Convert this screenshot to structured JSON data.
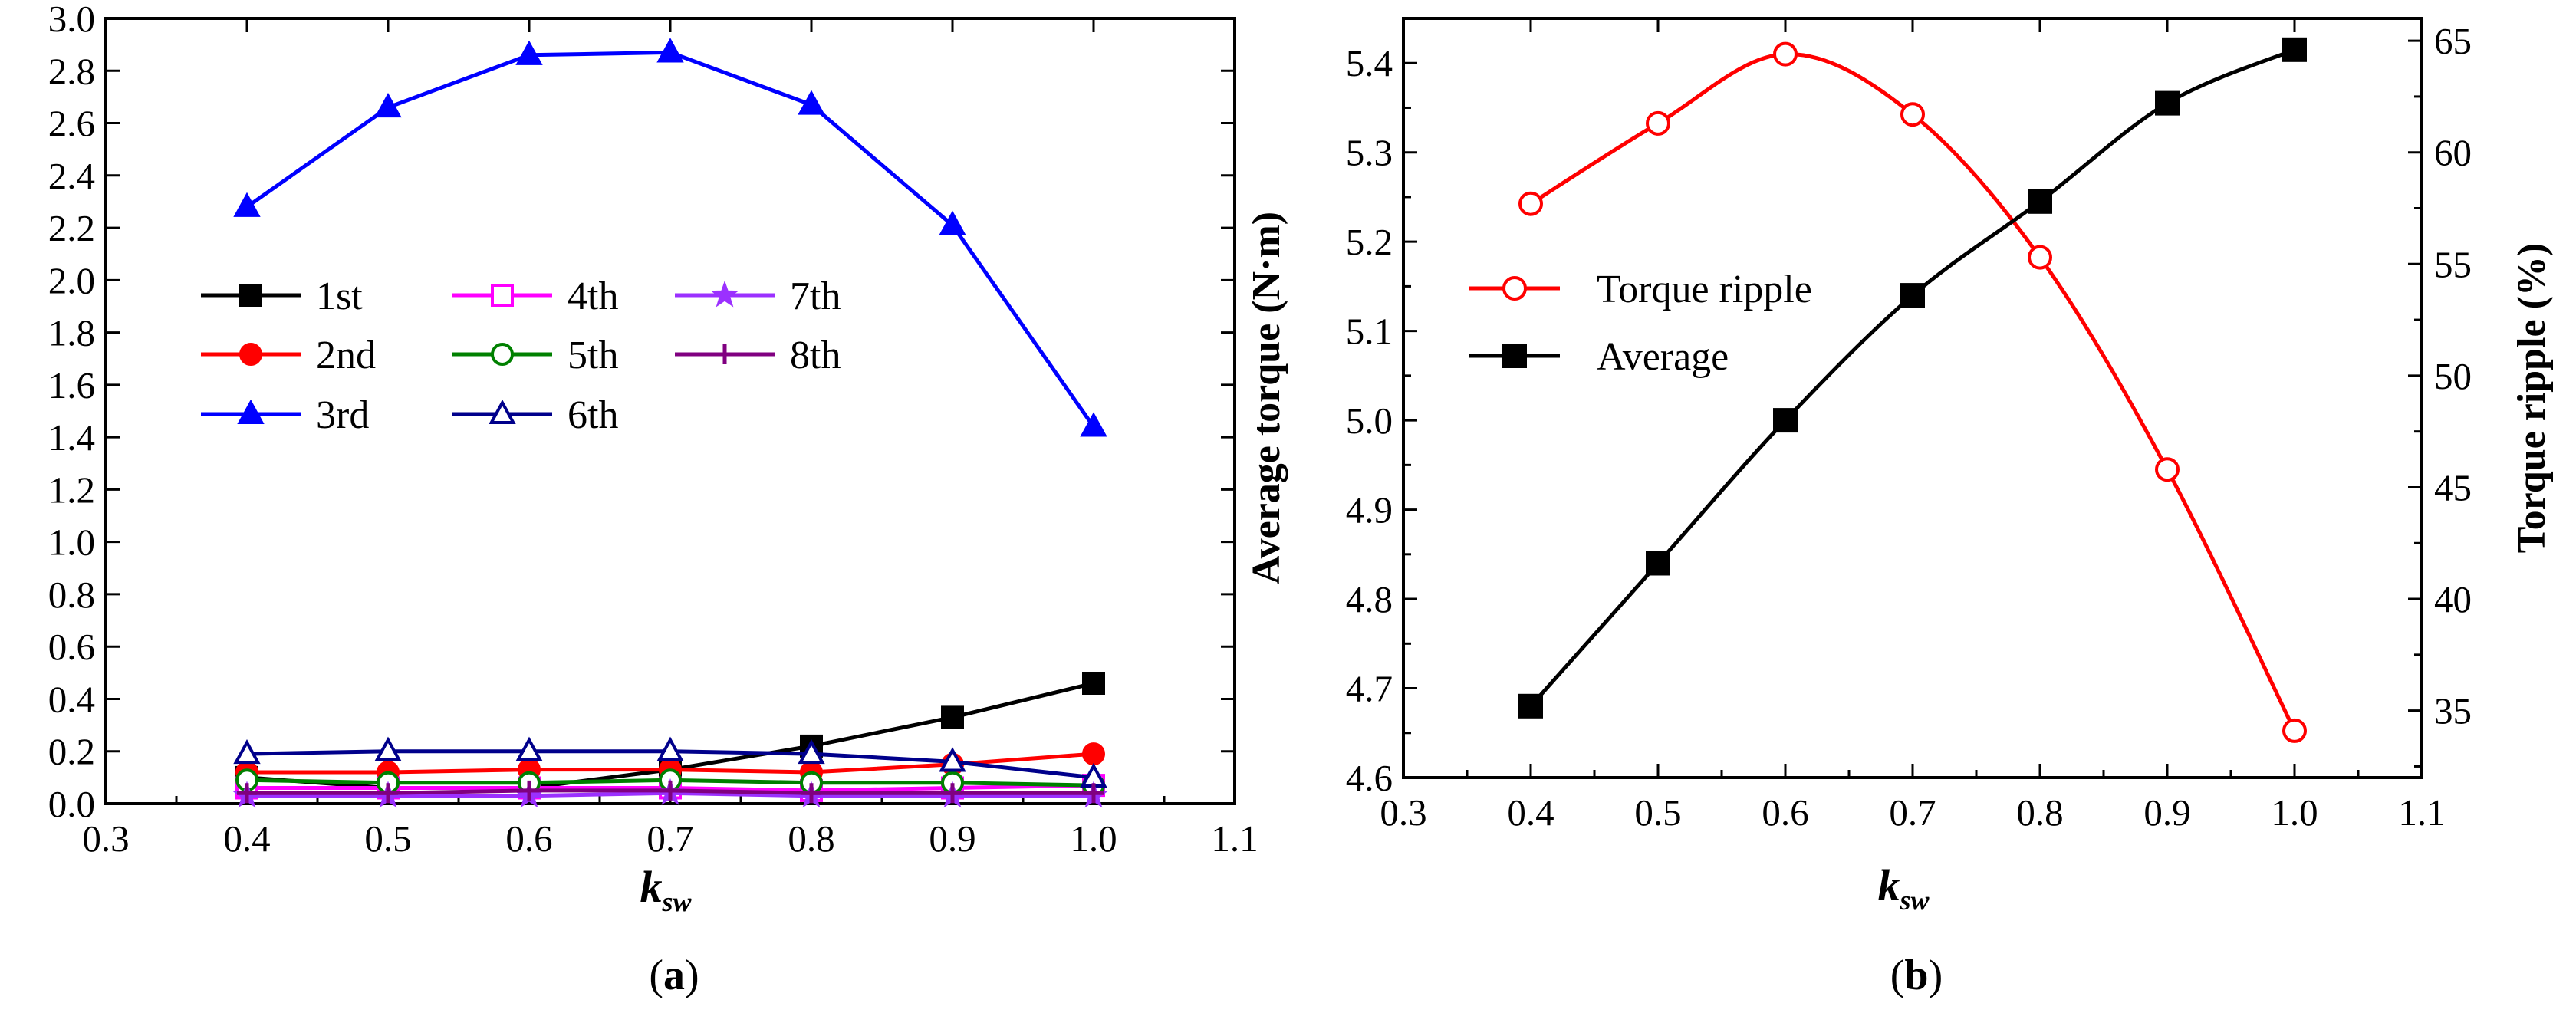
{
  "chart_data": [
    {
      "panel": "a",
      "caption_open": "(",
      "caption_letter": "a",
      "caption_close": ")",
      "type": "line",
      "xlabel_main": "k",
      "xlabel_sub": "sw",
      "ylabel": "",
      "xlim": [
        0.3,
        1.1
      ],
      "ylim": [
        0.0,
        3.0
      ],
      "xticks": [
        "0.3",
        "0.4",
        "0.5",
        "0.6",
        "0.7",
        "0.8",
        "0.9",
        "1.0",
        "1.1"
      ],
      "yticks": [
        "0.0",
        "0.2",
        "0.4",
        "0.6",
        "0.8",
        "1.0",
        "1.2",
        "1.4",
        "1.6",
        "1.8",
        "2.0",
        "2.2",
        "2.4",
        "2.6",
        "2.8",
        "3.0"
      ],
      "legend_position": "center-left",
      "x": [
        0.4,
        0.5,
        0.6,
        0.7,
        0.8,
        0.9,
        1.0
      ],
      "series": [
        {
          "name": "1st",
          "color": "#000000",
          "marker": "square",
          "filled": true,
          "values": [
            0.1,
            0.06,
            0.06,
            0.13,
            0.22,
            0.33,
            0.46
          ]
        },
        {
          "name": "2nd",
          "color": "#ff0000",
          "marker": "circle",
          "filled": true,
          "values": [
            0.12,
            0.12,
            0.13,
            0.13,
            0.12,
            0.15,
            0.19
          ]
        },
        {
          "name": "3rd",
          "color": "#0000ff",
          "marker": "triangle",
          "filled": true,
          "values": [
            2.28,
            2.66,
            2.86,
            2.87,
            2.67,
            2.21,
            1.44
          ]
        },
        {
          "name": "4th",
          "color": "#ff00ff",
          "marker": "square",
          "filled": false,
          "values": [
            0.06,
            0.06,
            0.06,
            0.06,
            0.05,
            0.06,
            0.07
          ]
        },
        {
          "name": "5th",
          "color": "#008000",
          "marker": "circle",
          "filled": false,
          "values": [
            0.09,
            0.08,
            0.08,
            0.09,
            0.08,
            0.08,
            0.07
          ]
        },
        {
          "name": "6th",
          "color": "#00008b",
          "marker": "triangle",
          "filled": false,
          "values": [
            0.19,
            0.2,
            0.2,
            0.2,
            0.19,
            0.16,
            0.1
          ]
        },
        {
          "name": "7th",
          "color": "#9b30ff",
          "marker": "star",
          "filled": true,
          "values": [
            0.03,
            0.03,
            0.03,
            0.04,
            0.03,
            0.03,
            0.03
          ]
        },
        {
          "name": "8th",
          "color": "#800080",
          "marker": "plus",
          "filled": true,
          "values": [
            0.04,
            0.04,
            0.05,
            0.05,
            0.04,
            0.04,
            0.04
          ]
        }
      ]
    },
    {
      "panel": "b",
      "caption_open": "(",
      "caption_letter": "b",
      "caption_close": ")",
      "type": "line",
      "xlabel_main": "k",
      "xlabel_sub": "sw",
      "ylabel": "Average torque (N·m)",
      "y2label": "Torque ripple (%)",
      "xlim": [
        0.3,
        1.1
      ],
      "ylim": [
        4.6,
        5.45
      ],
      "y2lim": [
        32,
        66
      ],
      "xticks": [
        "0.3",
        "0.4",
        "0.5",
        "0.6",
        "0.7",
        "0.8",
        "0.9",
        "1.0",
        "1.1"
      ],
      "yticks": [
        "4.6",
        "4.7",
        "4.8",
        "4.9",
        "5.0",
        "5.1",
        "5.2",
        "5.3",
        "5.4"
      ],
      "y2ticks": [
        "35",
        "40",
        "45",
        "50",
        "55",
        "60",
        "65"
      ],
      "legend_position": "center-left",
      "x": [
        0.4,
        0.5,
        0.6,
        0.7,
        0.8,
        0.9,
        1.0
      ],
      "series": [
        {
          "name": "Torque ripple",
          "axis": "right",
          "color": "#ff0000",
          "marker": "circle",
          "filled": false,
          "values": [
            57.7,
            61.3,
            64.4,
            61.7,
            55.3,
            45.8,
            34.1
          ]
        },
        {
          "name": "Average",
          "axis": "left",
          "color": "#000000",
          "marker": "square",
          "filled": true,
          "values": [
            4.68,
            4.84,
            5.0,
            5.14,
            5.245,
            5.355,
            5.415
          ]
        }
      ]
    }
  ]
}
